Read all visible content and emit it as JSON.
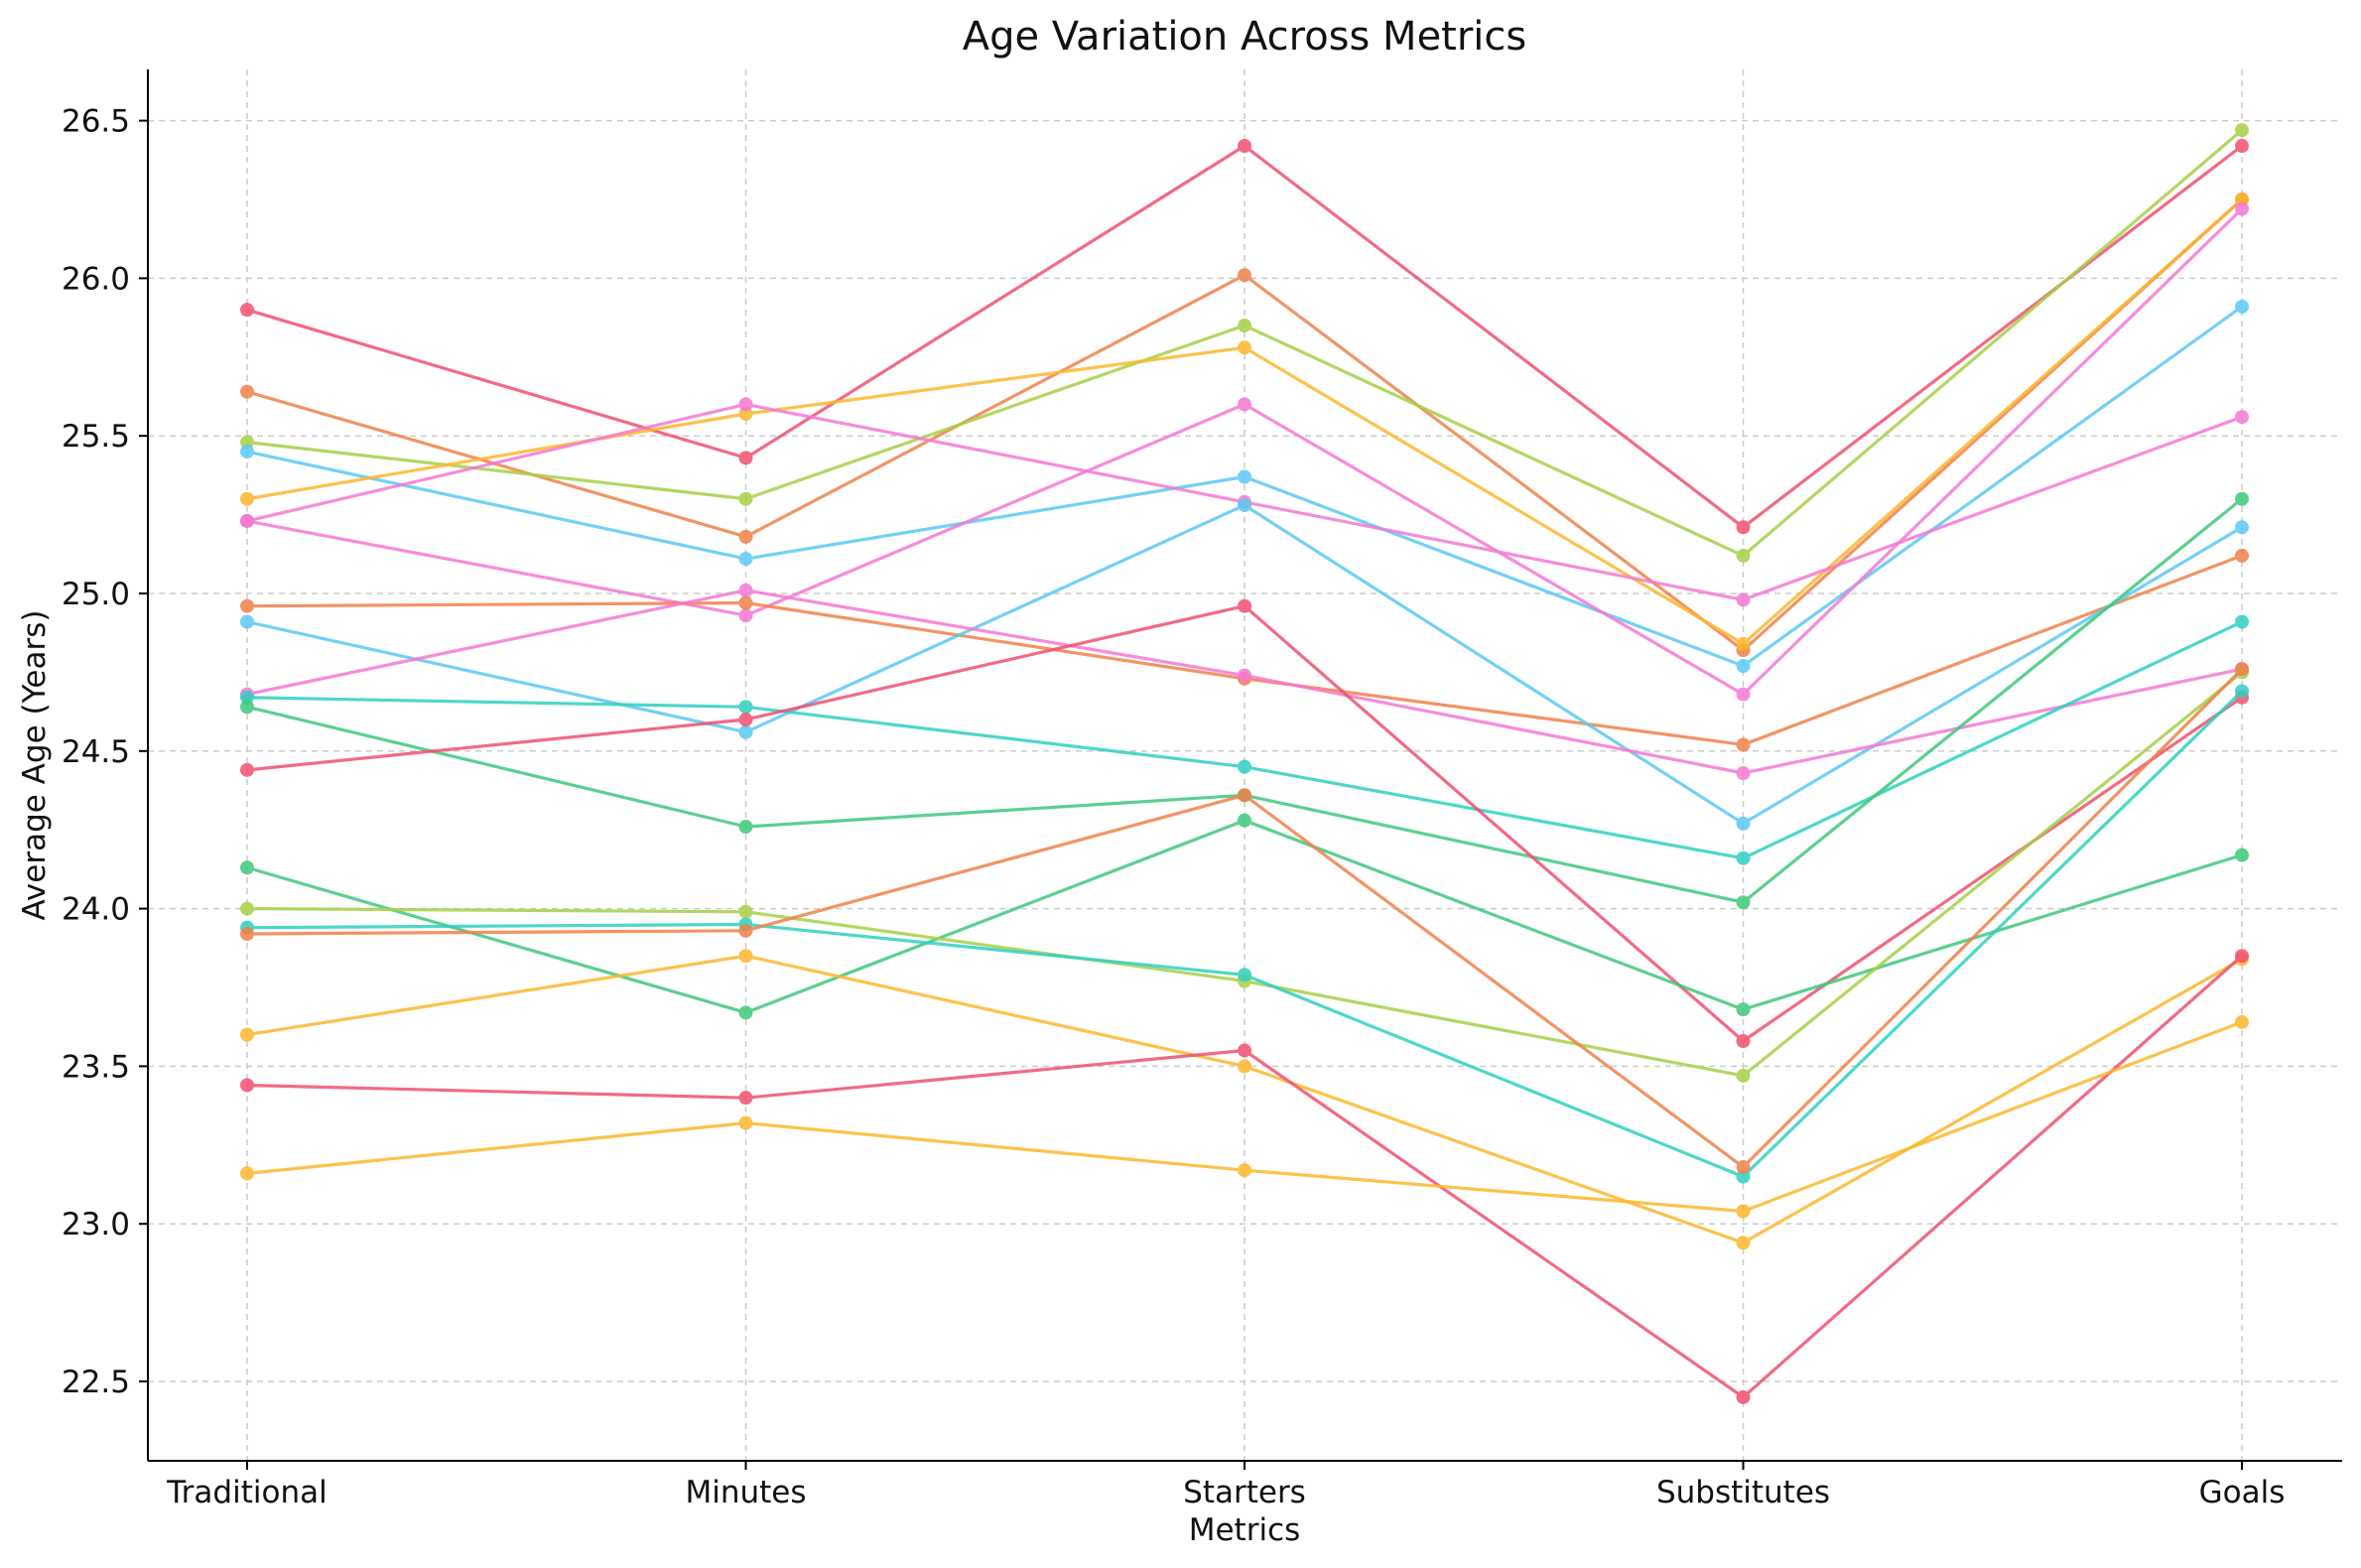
{
  "chart_data": {
    "type": "line",
    "title": "Age Variation Across Metrics",
    "xlabel": "Metrics",
    "ylabel": "Average Age (Years)",
    "categories": [
      "Traditional",
      "Minutes",
      "Starters",
      "Substitutes",
      "Goals"
    ],
    "ylim": [
      22.25,
      26.67
    ],
    "yticks": [
      22.5,
      23.0,
      23.5,
      24.0,
      24.5,
      25.0,
      25.5,
      26.0,
      26.5
    ],
    "ytick_labels": [
      "22.5",
      "23.0",
      "23.5",
      "24.0",
      "24.5",
      "25.0",
      "25.5",
      "26.0",
      "26.5"
    ],
    "grid": true,
    "legend": "none",
    "series": [
      {
        "color": "#f0506e",
        "values": [
          25.9,
          25.43,
          26.42,
          25.21,
          26.42
        ]
      },
      {
        "color": "#f0814a",
        "values": [
          25.64,
          25.18,
          26.01,
          24.82,
          26.25
        ]
      },
      {
        "color": "#a6d046",
        "values": [
          25.48,
          25.3,
          25.85,
          25.12,
          26.47
        ]
      },
      {
        "color": "#5bc8f5",
        "values": [
          25.45,
          25.11,
          25.37,
          24.77,
          25.91
        ]
      },
      {
        "color": "#fbb72c",
        "values": [
          25.3,
          25.57,
          25.78,
          24.84,
          26.25
        ]
      },
      {
        "color": "#f478d4",
        "values": [
          25.23,
          25.6,
          25.29,
          24.98,
          25.56
        ]
      },
      {
        "color": "#f478d4",
        "values": [
          25.23,
          24.93,
          25.6,
          24.68,
          26.22
        ]
      },
      {
        "color": "#f0814a",
        "values": [
          24.96,
          24.97,
          24.73,
          24.52,
          25.12
        ]
      },
      {
        "color": "#5bc8f5",
        "values": [
          24.91,
          24.56,
          25.28,
          24.27,
          25.21
        ]
      },
      {
        "color": "#f478d4",
        "values": [
          24.68,
          25.01,
          24.74,
          24.43,
          24.76
        ]
      },
      {
        "color": "#2ed0c0",
        "values": [
          24.67,
          24.64,
          24.45,
          24.16,
          24.91
        ]
      },
      {
        "color": "#3ec87a",
        "values": [
          24.64,
          24.26,
          24.36,
          24.02,
          25.3
        ]
      },
      {
        "color": "#f0506e",
        "values": [
          24.44,
          24.6,
          24.96,
          23.58,
          24.67
        ]
      },
      {
        "color": "#3ec87a",
        "values": [
          24.13,
          23.67,
          24.28,
          23.68,
          24.17
        ]
      },
      {
        "color": "#a6d046",
        "values": [
          24.0,
          23.99,
          23.77,
          23.47,
          24.75
        ]
      },
      {
        "color": "#2ed0c0",
        "values": [
          23.94,
          23.95,
          23.79,
          23.15,
          24.69
        ]
      },
      {
        "color": "#f0814a",
        "values": [
          23.92,
          23.93,
          24.36,
          23.18,
          24.76
        ]
      },
      {
        "color": "#fbb72c",
        "values": [
          23.6,
          23.85,
          23.5,
          22.94,
          23.84
        ]
      },
      {
        "color": "#f0506e",
        "values": [
          23.44,
          23.4,
          23.55,
          22.45,
          23.85
        ]
      },
      {
        "color": "#fbb72c",
        "values": [
          23.16,
          23.32,
          23.17,
          23.04,
          23.64
        ]
      }
    ]
  }
}
